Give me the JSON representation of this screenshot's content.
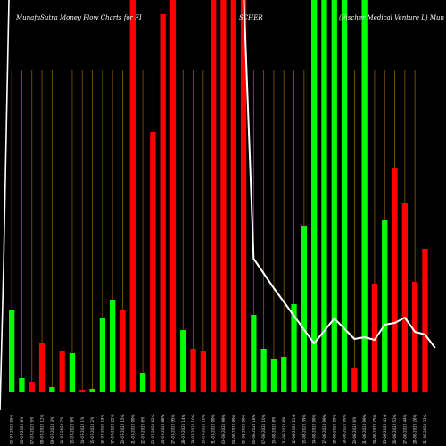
{
  "chart_data": {
    "type": "bar",
    "title_left": "MunafaSutra  Money Flow  Charts for FI",
    "title_mid": "SCHER",
    "title_right": "(Fischer Medical Venture   L) Mun",
    "xlabel": "",
    "ylabel": "",
    "grid": "vertical",
    "legend": "none",
    "colors": {
      "up": "#00ff00",
      "down": "#ff0000",
      "grid": "#8b5a00",
      "line": "#ffffff",
      "background": "#000000"
    },
    "bars": [
      {
        "label": "03-07-2020 55%",
        "dir": "up",
        "value": 92
      },
      {
        "label": "06-07-2020 8%",
        "dir": "up",
        "value": 16
      },
      {
        "label": "07-07-2020 5%",
        "dir": "down",
        "value": 12
      },
      {
        "label": "08-07-2020 12%",
        "dir": "down",
        "value": 56
      },
      {
        "label": "09-07-2020 3%",
        "dir": "up",
        "value": 6
      },
      {
        "label": "10-07-2020 7%",
        "dir": "down",
        "value": 46
      },
      {
        "label": "13-07-2020 9%",
        "dir": "up",
        "value": 44
      },
      {
        "label": "14-07-2020 1%",
        "dir": "down",
        "value": 3
      },
      {
        "label": "15-07-2020 2%",
        "dir": "up",
        "value": 4
      },
      {
        "label": "16-07-2020 18%",
        "dir": "up",
        "value": 84
      },
      {
        "label": "17-07-2020 22%",
        "dir": "up",
        "value": 104
      },
      {
        "label": "20-07-2020 15%",
        "dir": "down",
        "value": 92
      },
      {
        "label": "21-07-2020 99%",
        "dir": "down",
        "value": 440
      },
      {
        "label": "22-07-2020 6%",
        "dir": "up",
        "value": 22
      },
      {
        "label": "23-07-2020 62%",
        "dir": "down",
        "value": 292
      },
      {
        "label": "24-07-2020 88%",
        "dir": "down",
        "value": 424
      },
      {
        "label": "27-07-2020 95%",
        "dir": "down",
        "value": 440
      },
      {
        "label": "28-07-2020 14%",
        "dir": "up",
        "value": 70
      },
      {
        "label": "29-07-2020 10%",
        "dir": "down",
        "value": 49
      },
      {
        "label": "30-07-2020 10%",
        "dir": "down",
        "value": 47
      },
      {
        "label": "31-07-2020 99%",
        "dir": "down",
        "value": 440
      },
      {
        "label": "03-08-2020 99%",
        "dir": "down",
        "value": 440
      },
      {
        "label": "04-08-2020 99%",
        "dir": "down",
        "value": 440
      },
      {
        "label": "05-08-2020 99%",
        "dir": "down",
        "value": 440
      },
      {
        "label": "06-08-2020 18%",
        "dir": "up",
        "value": 87
      },
      {
        "label": "07-08-2020 10%",
        "dir": "up",
        "value": 49
      },
      {
        "label": "10-08-2020 8%",
        "dir": "up",
        "value": 38
      },
      {
        "label": "11-08-2020 8%",
        "dir": "up",
        "value": 40
      },
      {
        "label": "12-08-2020 21%",
        "dir": "up",
        "value": 99
      },
      {
        "label": "13-08-2020 39%",
        "dir": "up",
        "value": 187
      },
      {
        "label": "14-08-2020 99%",
        "dir": "up",
        "value": 440
      },
      {
        "label": "17-08-2020 99%",
        "dir": "up",
        "value": 440
      },
      {
        "label": "18-08-2020 99%",
        "dir": "up",
        "value": 440
      },
      {
        "label": "19-08-2020 99%",
        "dir": "up",
        "value": 440
      },
      {
        "label": "20-08-2020 6%",
        "dir": "down",
        "value": 27
      },
      {
        "label": "21-08-2020 99%",
        "dir": "up",
        "value": 440
      },
      {
        "label": "24-08-2020 25%",
        "dir": "down",
        "value": 122
      },
      {
        "label": "25-08-2020 41%",
        "dir": "up",
        "value": 193
      },
      {
        "label": "26-08-2020 53%",
        "dir": "down",
        "value": 252
      },
      {
        "label": "27-08-2020 44%",
        "dir": "down",
        "value": 212
      },
      {
        "label": "28-08-2020 26%",
        "dir": "down",
        "value": 124
      },
      {
        "label": "31-08-2020 33%",
        "dir": "down",
        "value": 161
      }
    ],
    "line": [
      {
        "index": 24,
        "value": 150
      },
      {
        "index": 26,
        "value": 117
      },
      {
        "index": 28,
        "value": 86
      },
      {
        "index": 30,
        "value": 55
      },
      {
        "index": 32,
        "value": 83
      },
      {
        "index": 34,
        "value": 60
      },
      {
        "index": 35,
        "value": 62
      },
      {
        "index": 36,
        "value": 59
      },
      {
        "index": 37,
        "value": 76
      },
      {
        "index": 38,
        "value": 78
      },
      {
        "index": 39,
        "value": 84
      },
      {
        "index": 40,
        "value": 68
      },
      {
        "index": 41,
        "value": 65
      },
      {
        "index": 42,
        "value": 50
      }
    ],
    "ylim": [
      0,
      440
    ]
  }
}
